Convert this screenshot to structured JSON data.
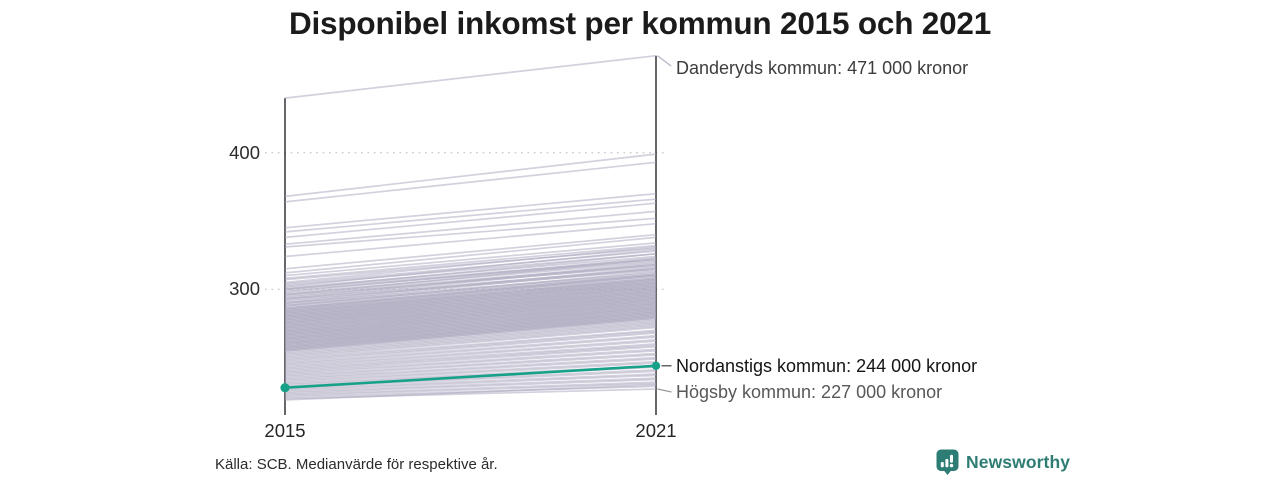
{
  "title": "Disponibel inkomst per kommun 2015 och 2021",
  "source": "Källa: SCB. Medianvärde för respektive år.",
  "brand": {
    "name": "Newsworthy",
    "color": "#2e7d74"
  },
  "colors": {
    "highlight": "#18a189",
    "gray_line": "#a7a4bc",
    "axis": "#26262b",
    "grid": "#cfcfcf",
    "connector_gray": "#b3b1c2",
    "connector_dark": "#3f3f3f",
    "connector_mid": "#9b9b9b"
  },
  "chart_data": {
    "type": "line",
    "subtype": "slope",
    "x": [
      2015,
      2021
    ],
    "x_tick_labels": [
      "2015",
      "2021"
    ],
    "y_ticks": [
      400,
      300
    ],
    "y_tick_labels": [
      "400",
      "300"
    ],
    "ylim": [
      215,
      475
    ],
    "grid": "dotted-horizontal",
    "legend_position": "none",
    "annotations": [
      {
        "label": "Danderyds kommun: 471 000 kronor",
        "year": 2021,
        "value": 471
      },
      {
        "label": "Nordanstigs kommun: 244 000 kronor",
        "year": 2021,
        "value": 244
      },
      {
        "label": "Högsby kommun: 227 000 kronor",
        "year": 2021,
        "value": 227
      }
    ],
    "highlight_series": {
      "name": "Nordanstigs kommun",
      "values": [
        228,
        244
      ]
    },
    "named_series": [
      {
        "name": "Danderyds kommun",
        "values": [
          440,
          471
        ]
      },
      {
        "name": "Högsby kommun",
        "values": [
          220,
          227
        ]
      }
    ],
    "series_gray": [
      [
        440,
        471
      ],
      [
        368,
        399
      ],
      [
        364,
        393
      ],
      [
        345,
        370
      ],
      [
        342,
        366
      ],
      [
        338,
        363
      ],
      [
        333,
        357
      ],
      [
        331,
        352
      ],
      [
        324,
        348
      ],
      [
        315,
        340
      ],
      [
        312,
        338
      ],
      [
        310,
        334
      ],
      [
        308,
        332
      ],
      [
        307,
        330
      ],
      [
        305,
        331
      ],
      [
        304,
        328
      ],
      [
        303,
        326
      ],
      [
        302,
        329
      ],
      [
        301,
        324
      ],
      [
        300,
        326
      ],
      [
        300,
        322
      ],
      [
        299,
        321
      ],
      [
        298,
        323
      ],
      [
        297,
        320
      ],
      [
        296,
        318
      ],
      [
        296,
        322
      ],
      [
        295,
        317
      ],
      [
        294,
        319
      ],
      [
        293,
        315
      ],
      [
        293,
        318
      ],
      [
        292,
        314
      ],
      [
        291,
        316
      ],
      [
        290,
        312
      ],
      [
        290,
        315
      ],
      [
        289,
        311
      ],
      [
        288,
        313
      ],
      [
        288,
        310
      ],
      [
        287,
        309
      ],
      [
        286,
        311
      ],
      [
        286,
        308
      ],
      [
        285,
        307
      ],
      [
        285,
        310
      ],
      [
        284,
        306
      ],
      [
        284,
        308
      ],
      [
        283,
        305
      ],
      [
        283,
        307
      ],
      [
        282,
        304
      ],
      [
        282,
        306
      ],
      [
        281,
        303
      ],
      [
        281,
        305
      ],
      [
        280,
        302
      ],
      [
        280,
        304
      ],
      [
        279,
        301
      ],
      [
        279,
        303
      ],
      [
        278,
        300
      ],
      [
        278,
        302
      ],
      [
        277,
        299
      ],
      [
        277,
        301
      ],
      [
        276,
        298
      ],
      [
        276,
        300
      ],
      [
        275,
        297
      ],
      [
        275,
        299
      ],
      [
        274,
        296
      ],
      [
        274,
        298
      ],
      [
        273,
        295
      ],
      [
        273,
        297
      ],
      [
        272,
        294
      ],
      [
        272,
        296
      ],
      [
        271,
        293
      ],
      [
        271,
        295
      ],
      [
        270,
        292
      ],
      [
        270,
        294
      ],
      [
        269,
        291
      ],
      [
        269,
        293
      ],
      [
        268,
        290
      ],
      [
        268,
        292
      ],
      [
        267,
        289
      ],
      [
        267,
        291
      ],
      [
        266,
        288
      ],
      [
        266,
        290
      ],
      [
        265,
        287
      ],
      [
        265,
        289
      ],
      [
        264,
        286
      ],
      [
        264,
        288
      ],
      [
        263,
        285
      ],
      [
        263,
        287
      ],
      [
        262,
        284
      ],
      [
        262,
        286
      ],
      [
        261,
        283
      ],
      [
        261,
        285
      ],
      [
        260,
        282
      ],
      [
        260,
        284
      ],
      [
        259,
        281
      ],
      [
        259,
        283
      ],
      [
        258,
        280
      ],
      [
        258,
        282
      ],
      [
        257,
        279
      ],
      [
        257,
        281
      ],
      [
        256,
        278
      ],
      [
        256,
        280
      ],
      [
        255,
        277
      ],
      [
        255,
        279
      ],
      [
        254,
        276
      ],
      [
        253,
        275
      ],
      [
        252,
        274
      ],
      [
        251,
        273
      ],
      [
        250,
        272
      ],
      [
        249,
        270
      ],
      [
        248,
        269
      ],
      [
        247,
        268
      ],
      [
        246,
        266
      ],
      [
        245,
        265
      ],
      [
        244,
        263
      ],
      [
        243,
        262
      ],
      [
        242,
        260
      ],
      [
        241,
        259
      ],
      [
        240,
        258
      ],
      [
        239,
        256
      ],
      [
        238,
        255
      ],
      [
        237,
        253
      ],
      [
        236,
        252
      ],
      [
        235,
        250
      ],
      [
        234,
        249
      ],
      [
        233,
        247
      ],
      [
        232,
        246
      ],
      [
        231,
        244
      ],
      [
        230,
        243
      ],
      [
        229,
        241
      ],
      [
        228,
        240
      ],
      [
        227,
        238
      ],
      [
        226,
        237
      ],
      [
        225,
        235
      ],
      [
        224,
        234
      ],
      [
        223,
        232
      ],
      [
        222,
        231
      ],
      [
        221,
        229
      ],
      [
        220,
        227
      ],
      [
        219,
        230
      ]
    ]
  }
}
